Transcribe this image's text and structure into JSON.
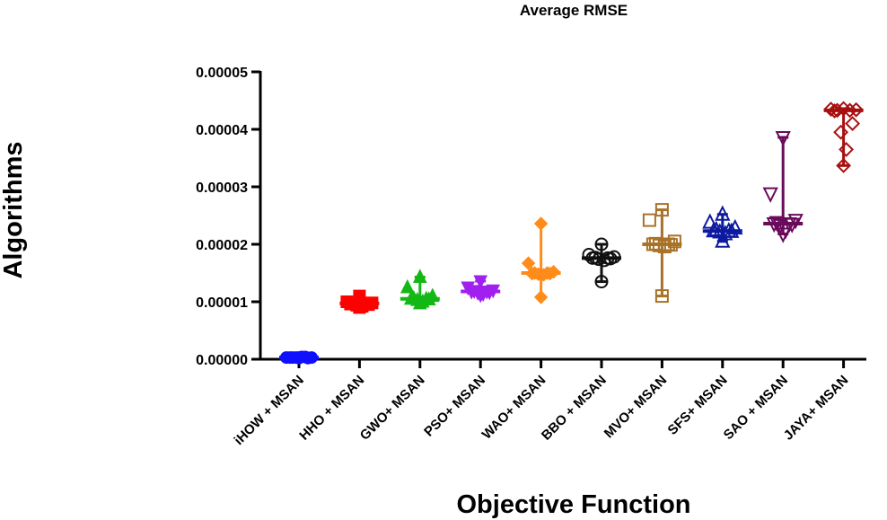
{
  "chart_data": {
    "type": "scatter",
    "title": "Average RMSE",
    "xlabel": "Objective Function",
    "ylabel": "Algorithms",
    "ylim": [
      0,
      5e-05
    ],
    "yticks": [
      "0.00000",
      "0.00001",
      "0.00002",
      "0.00003",
      "0.00004",
      "0.00005"
    ],
    "ytick_values": [
      0,
      1e-05,
      2e-05,
      3e-05,
      4e-05,
      5e-05
    ],
    "grid": false,
    "legend": "none",
    "categories": [
      "iHOW + MSAN",
      "HHO + MSAN",
      "GWO+ MSAN",
      "PSO+ MSAN",
      "WAO+ MSAN",
      "BBO + MSAN",
      "MVO+ MSAN",
      "SFS+ MSAN",
      "SAO + MSAN",
      "JAYA+ MSAN"
    ],
    "series": [
      {
        "name": "iHOW + MSAN",
        "color": "#1010ff",
        "marker": "circle-filled",
        "median": 3e-07,
        "min": 2e-07,
        "max": 4e-07,
        "values": [
          2e-07,
          3e-07,
          3e-07,
          3e-07,
          4e-07,
          3e-07,
          2e-07,
          3e-07,
          4e-07,
          3e-07
        ]
      },
      {
        "name": "HHO + MSAN",
        "color": "#ff0000",
        "marker": "square-filled",
        "median": 9.7e-06,
        "min": 9e-06,
        "max": 1.1e-05,
        "values": [
          1.1e-05,
          1e-05,
          9.8e-06,
          9.7e-06,
          9.7e-06,
          9.6e-06,
          9.5e-06,
          9.4e-06,
          9.2e-06,
          9e-06
        ]
      },
      {
        "name": "GWO+ MSAN",
        "color": "#14b814",
        "marker": "triangle-up-filled",
        "median": 1.05e-05,
        "min": 9.7e-06,
        "max": 1.43e-05,
        "values": [
          1.43e-05,
          1.25e-05,
          1.1e-05,
          1.06e-05,
          1.05e-05,
          1.05e-05,
          1.04e-05,
          1.03e-05,
          1e-05,
          9.7e-06
        ]
      },
      {
        "name": "PSO+ MSAN",
        "color": "#a020f0",
        "marker": "triangle-down-filled",
        "median": 1.18e-05,
        "min": 1.12e-05,
        "max": 1.36e-05,
        "values": [
          1.36e-05,
          1.25e-05,
          1.2e-05,
          1.19e-05,
          1.18e-05,
          1.18e-05,
          1.17e-05,
          1.16e-05,
          1.14e-05,
          1.12e-05
        ]
      },
      {
        "name": "WAO+ MSAN",
        "color": "#ff8c1a",
        "marker": "diamond-filled",
        "median": 1.5e-05,
        "min": 1.08e-05,
        "max": 2.36e-05,
        "values": [
          2.36e-05,
          1.67e-05,
          1.52e-05,
          1.5e-05,
          1.5e-05,
          1.49e-05,
          1.49e-05,
          1.48e-05,
          1.47e-05,
          1.08e-05
        ]
      },
      {
        "name": "BBO + MSAN",
        "color": "#111111",
        "marker": "circle-open",
        "median": 1.76e-05,
        "min": 1.35e-05,
        "max": 2e-05,
        "values": [
          2e-05,
          1.82e-05,
          1.78e-05,
          1.77e-05,
          1.76e-05,
          1.76e-05,
          1.75e-05,
          1.74e-05,
          1.72e-05,
          1.35e-05
        ]
      },
      {
        "name": "MVO+ MSAN",
        "color": "#a87228",
        "marker": "square-open",
        "median": 2e-05,
        "min": 1.1e-05,
        "max": 2.6e-05,
        "values": [
          2.6e-05,
          2.42e-05,
          2.05e-05,
          2.01e-05,
          2e-05,
          2e-05,
          1.99e-05,
          1.98e-05,
          1.96e-05,
          1.1e-05
        ]
      },
      {
        "name": "SFS+ MSAN",
        "color": "#0d1aa0",
        "marker": "triangle-up-open",
        "median": 2.23e-05,
        "min": 2.05e-05,
        "max": 2.52e-05,
        "values": [
          2.52e-05,
          2.38e-05,
          2.28e-05,
          2.25e-05,
          2.23e-05,
          2.23e-05,
          2.22e-05,
          2.21e-05,
          2.18e-05,
          2.05e-05
        ]
      },
      {
        "name": "SAO + MSAN",
        "color": "#6a0a5a",
        "marker": "triangle-down-open",
        "median": 2.36e-05,
        "min": 2.18e-05,
        "max": 3.86e-05,
        "values": [
          3.86e-05,
          2.88e-05,
          2.42e-05,
          2.38e-05,
          2.36e-05,
          2.36e-05,
          2.35e-05,
          2.33e-05,
          2.25e-05,
          2.18e-05
        ]
      },
      {
        "name": "JAYA+ MSAN",
        "color": "#a81010",
        "marker": "diamond-open",
        "median": 4.33e-05,
        "min": 3.37e-05,
        "max": 4.36e-05,
        "values": [
          4.36e-05,
          4.35e-05,
          4.34e-05,
          4.33e-05,
          4.33e-05,
          4.32e-05,
          4.1e-05,
          3.95e-05,
          3.65e-05,
          3.37e-05
        ]
      }
    ]
  }
}
